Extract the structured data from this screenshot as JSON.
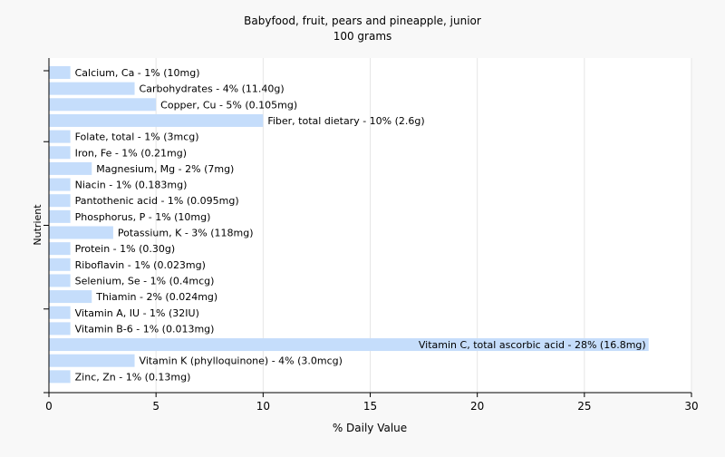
{
  "chart_data": {
    "type": "bar",
    "orientation": "horizontal",
    "title": "Babyfood, fruit, pears and pineapple, junior",
    "subtitle": "100 grams",
    "xlabel": "% Daily Value",
    "ylabel": "Nutrient",
    "xlim": [
      0,
      30
    ],
    "xticks": [
      0,
      5,
      10,
      15,
      20,
      25,
      30
    ],
    "grid": "vertical",
    "bar_color": "#c5ddfb",
    "categories": [
      "Calcium, Ca",
      "Carbohydrates",
      "Copper, Cu",
      "Fiber, total dietary",
      "Folate, total",
      "Iron, Fe",
      "Magnesium, Mg",
      "Niacin",
      "Pantothenic acid",
      "Phosphorus, P",
      "Potassium, K",
      "Protein",
      "Riboflavin",
      "Selenium, Se",
      "Thiamin",
      "Vitamin A, IU",
      "Vitamin B-6",
      "Vitamin C, total ascorbic acid",
      "Vitamin K (phylloquinone)",
      "Zinc, Zn"
    ],
    "values": [
      1,
      4,
      5,
      10,
      1,
      1,
      2,
      1,
      1,
      1,
      3,
      1,
      1,
      1,
      2,
      1,
      1,
      28,
      4,
      1
    ],
    "labels": [
      "Calcium, Ca - 1% (10mg)",
      "Carbohydrates - 4% (11.40g)",
      "Copper, Cu - 5% (0.105mg)",
      "Fiber, total dietary - 10% (2.6g)",
      "Folate, total - 1% (3mcg)",
      "Iron, Fe - 1% (0.21mg)",
      "Magnesium, Mg - 2% (7mg)",
      "Niacin - 1% (0.183mg)",
      "Pantothenic acid - 1% (0.095mg)",
      "Phosphorus, P - 1% (10mg)",
      "Potassium, K - 3% (118mg)",
      "Protein - 1% (0.30g)",
      "Riboflavin - 1% (0.023mg)",
      "Selenium, Se - 1% (0.4mcg)",
      "Thiamin - 2% (0.024mg)",
      "Vitamin A, IU - 1% (32IU)",
      "Vitamin B-6 - 1% (0.013mg)",
      "Vitamin C, total ascorbic acid - 28% (16.8mg)",
      "Vitamin K (phylloquinone) - 4% (3.0mcg)",
      "Zinc, Zn - 1% (0.13mg)"
    ]
  }
}
